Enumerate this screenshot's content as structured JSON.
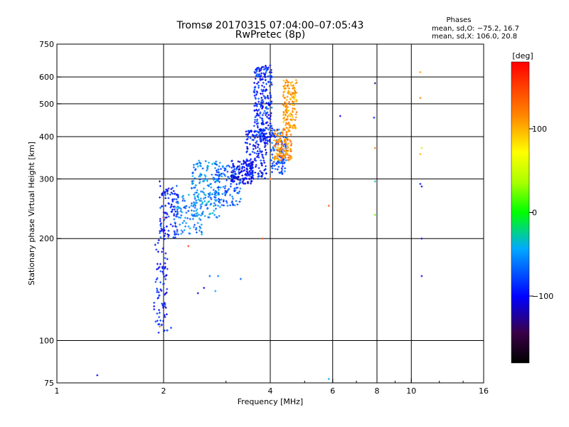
{
  "chart_data": {
    "type": "scatter",
    "title": "Tromsø 20170315 07:04:00–07:05:43",
    "subtitle": "RwPretec (8p)",
    "phases_label": "Phases",
    "stats_o": "mean, sd,O: −75.2, 16.7",
    "stats_x": "mean, sd,X: 106.0, 20.8",
    "xlabel": "Frequency [MHz]",
    "ylabel": "Stationary phase Virtual Height [km]",
    "xscale": "log",
    "yscale": "log",
    "xlim": [
      1,
      16
    ],
    "ylim": [
      75,
      750
    ],
    "xticks": [
      1,
      2,
      4,
      6,
      8,
      10,
      16
    ],
    "xtick_labels": [
      "1",
      "2",
      "4",
      "6",
      "8",
      "10",
      "16"
    ],
    "xgrid": [
      2,
      4,
      6,
      8,
      10
    ],
    "yticks": [
      75,
      100,
      200,
      300,
      400,
      500,
      600,
      750
    ],
    "ytick_labels": [
      "75",
      "100",
      "200",
      "300",
      "400",
      "500",
      "600",
      "750"
    ],
    "ygrid": [
      100,
      200,
      300,
      400,
      500,
      600
    ],
    "colorbar": {
      "label": "[deg]",
      "range": [
        -180,
        180
      ],
      "ticks": [
        100,
        0,
        -100
      ],
      "tick_labels": [
        "100",
        "0",
        "−100"
      ]
    },
    "clusters": [
      {
        "f": [
          1.88,
          2.05
        ],
        "h": [
          105,
          200
        ],
        "phase": -95,
        "n": 80
      },
      {
        "f": [
          1.95,
          2.2
        ],
        "h": [
          200,
          290
        ],
        "phase": -90,
        "n": 110
      },
      {
        "f": [
          2.15,
          2.6
        ],
        "h": [
          205,
          270
        ],
        "phase": -60,
        "n": 90
      },
      {
        "f": [
          2.4,
          2.9
        ],
        "h": [
          230,
          340
        ],
        "phase": -55,
        "n": 170
      },
      {
        "f": [
          2.8,
          3.3
        ],
        "h": [
          250,
          330
        ],
        "phase": -70,
        "n": 120
      },
      {
        "f": [
          3.1,
          3.6
        ],
        "h": [
          290,
          340
        ],
        "phase": -100,
        "n": 120
      },
      {
        "f": [
          3.4,
          3.9
        ],
        "h": [
          300,
          420
        ],
        "phase": -95,
        "n": 160
      },
      {
        "f": [
          3.6,
          4.05
        ],
        "h": [
          380,
          650
        ],
        "phase": -90,
        "n": 260
      },
      {
        "f": [
          4.0,
          4.45
        ],
        "h": [
          310,
          420
        ],
        "phase": -75,
        "n": 110
      },
      {
        "f": [
          4.1,
          4.6
        ],
        "h": [
          340,
          420
        ],
        "phase": 115,
        "n": 130
      },
      {
        "f": [
          4.35,
          4.75
        ],
        "h": [
          420,
          590
        ],
        "phase": 110,
        "n": 150
      }
    ],
    "scatter_points": [
      {
        "f": 1.3,
        "h": 79,
        "phase": -100
      },
      {
        "f": 5.85,
        "h": 77,
        "phase": -45
      },
      {
        "f": 5.85,
        "h": 250,
        "phase": 140
      },
      {
        "f": 6.3,
        "h": 460,
        "phase": -110
      },
      {
        "f": 7.9,
        "h": 575,
        "phase": -130
      },
      {
        "f": 7.85,
        "h": 455,
        "phase": -90
      },
      {
        "f": 7.9,
        "h": 370,
        "phase": 120
      },
      {
        "f": 7.9,
        "h": 295,
        "phase": -30
      },
      {
        "f": 7.9,
        "h": 235,
        "phase": 20
      },
      {
        "f": 10.6,
        "h": 620,
        "phase": 110
      },
      {
        "f": 10.6,
        "h": 520,
        "phase": 120
      },
      {
        "f": 10.7,
        "h": 370,
        "phase": 40
      },
      {
        "f": 10.6,
        "h": 355,
        "phase": 100
      },
      {
        "f": 10.6,
        "h": 290,
        "phase": -90
      },
      {
        "f": 10.7,
        "h": 285,
        "phase": -110
      },
      {
        "f": 10.7,
        "h": 200,
        "phase": -110
      },
      {
        "f": 10.7,
        "h": 155,
        "phase": -100
      },
      {
        "f": 3.8,
        "h": 200,
        "phase": 140
      },
      {
        "f": 2.35,
        "h": 190,
        "phase": 150
      },
      {
        "f": 2.7,
        "h": 155,
        "phase": -70
      },
      {
        "f": 2.85,
        "h": 155,
        "phase": -60
      },
      {
        "f": 3.3,
        "h": 152,
        "phase": -70
      },
      {
        "f": 2.5,
        "h": 138,
        "phase": -110
      },
      {
        "f": 2.6,
        "h": 143,
        "phase": -100
      },
      {
        "f": 2.8,
        "h": 140,
        "phase": -50
      },
      {
        "f": 2.05,
        "h": 107,
        "phase": -60
      },
      {
        "f": 2.1,
        "h": 109,
        "phase": -80
      },
      {
        "f": 1.95,
        "h": 110,
        "phase": 120
      },
      {
        "f": 2.0,
        "h": 230,
        "phase": 140
      },
      {
        "f": 4.0,
        "h": 300,
        "phase": 140
      },
      {
        "f": 1.95,
        "h": 295,
        "phase": -120
      }
    ]
  }
}
